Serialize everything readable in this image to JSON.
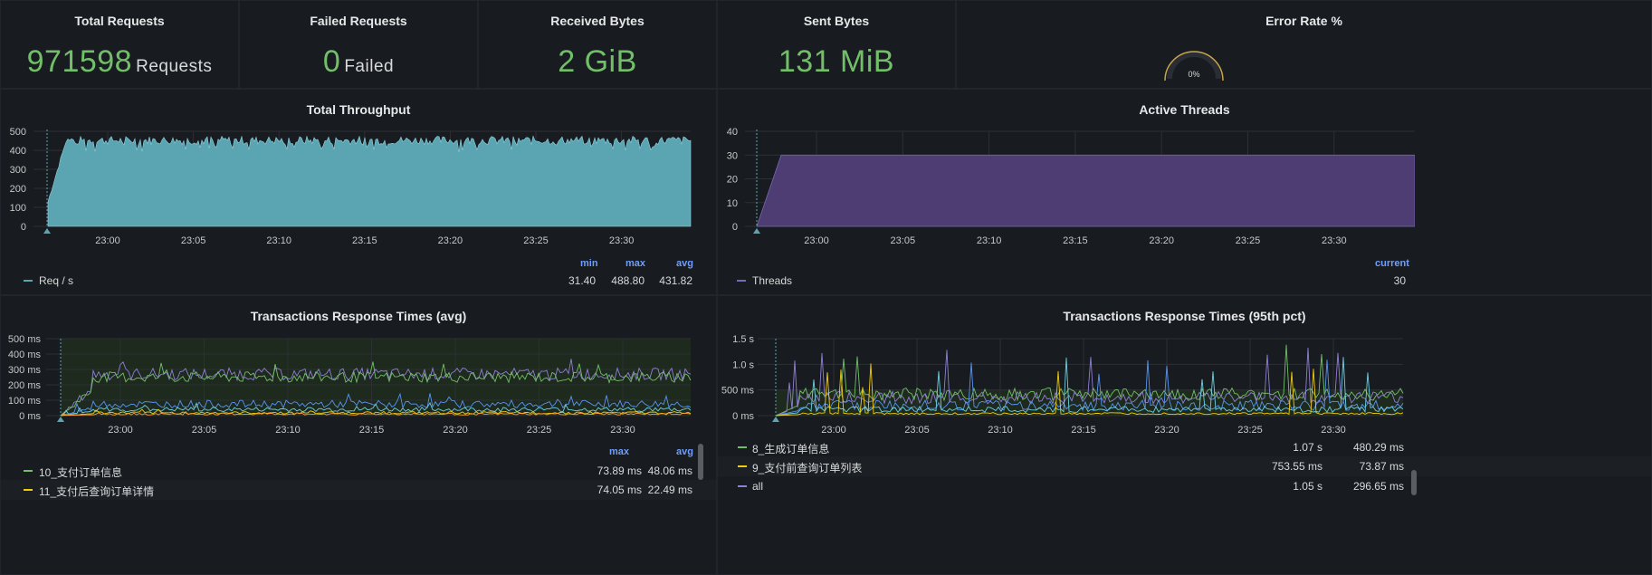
{
  "stats": [
    {
      "title": "Total Requests",
      "value": "971598",
      "unit": "Requests"
    },
    {
      "title": "Failed Requests",
      "value": "0",
      "unit": "Failed"
    },
    {
      "title": "Received Bytes",
      "value": "2 GiB",
      "unit": ""
    },
    {
      "title": "Sent Bytes",
      "value": "131 MiB",
      "unit": ""
    },
    {
      "title": "Error Rate %",
      "value": "0%",
      "unit": ""
    }
  ],
  "colors": {
    "throughput": "#5ba4b2",
    "threads": "#4d3d73",
    "stat_green": "#73bf69",
    "legend_head": "#6e9fff"
  },
  "x_ticks": [
    "23:00",
    "23:05",
    "23:10",
    "23:15",
    "23:20",
    "23:25",
    "23:30"
  ],
  "throughput": {
    "title": "Total Throughput",
    "y_ticks": [
      "500",
      "400",
      "300",
      "200",
      "100",
      "0"
    ],
    "legend_headers": [
      "min",
      "max",
      "avg"
    ],
    "series": [
      {
        "name": "Req / s",
        "min": "31.40",
        "max": "488.80",
        "avg": "431.82"
      }
    ]
  },
  "threads": {
    "title": "Active Threads",
    "y_ticks": [
      "40",
      "30",
      "20",
      "10",
      "0"
    ],
    "legend_headers": [
      "current"
    ],
    "series": [
      {
        "name": "Threads",
        "current": "30"
      }
    ]
  },
  "resp_avg": {
    "title": "Transactions Response Times (avg)",
    "y_ticks": [
      "500 ms",
      "400 ms",
      "300 ms",
      "200 ms",
      "100 ms",
      "0 ms"
    ],
    "legend_headers": [
      "max",
      "avg"
    ],
    "series": [
      {
        "name": "10_支付订单信息",
        "max": "73.89 ms",
        "avg": "48.06 ms",
        "color": "#73bf69"
      },
      {
        "name": "11_支付后查询订单详情",
        "max": "74.05 ms",
        "avg": "22.49 ms",
        "color": "#f2cc0c"
      }
    ]
  },
  "resp_p95": {
    "title": "Transactions Response Times (95th pct)",
    "y_ticks": [
      "1.5 s",
      "1.0 s",
      "500 ms",
      "0 ms"
    ],
    "series": [
      {
        "name": "8_生成订单信息",
        "max": "1.07 s",
        "avg": "480.29 ms",
        "color": "#73bf69"
      },
      {
        "name": "9_支付前查询订单列表",
        "max": "753.55 ms",
        "avg": "73.87 ms",
        "color": "#f2cc0c"
      },
      {
        "name": "all",
        "max": "1.05 s",
        "avg": "296.65 ms",
        "color": "#8f7fd6"
      }
    ]
  },
  "chart_data": [
    {
      "type": "area",
      "title": "Total Throughput",
      "x": [
        "23:00",
        "23:05",
        "23:10",
        "23:15",
        "23:20",
        "23:25",
        "23:30"
      ],
      "series": [
        {
          "name": "Req / s",
          "min": 31.4,
          "max": 488.8,
          "avg": 431.82
        }
      ],
      "ylim": [
        0,
        500
      ]
    },
    {
      "type": "area",
      "title": "Active Threads",
      "x": [
        "23:00",
        "23:05",
        "23:10",
        "23:15",
        "23:20",
        "23:25",
        "23:30"
      ],
      "series": [
        {
          "name": "Threads",
          "current": 30
        }
      ],
      "ylim": [
        0,
        40
      ]
    },
    {
      "type": "line",
      "title": "Transactions Response Times (avg)",
      "x": [
        "23:00",
        "23:05",
        "23:10",
        "23:15",
        "23:20",
        "23:25",
        "23:30"
      ],
      "ylim": [
        0,
        500
      ]
    },
    {
      "type": "line",
      "title": "Transactions Response Times (95th pct)",
      "x": [
        "23:00",
        "23:05",
        "23:10",
        "23:15",
        "23:20",
        "23:25",
        "23:30"
      ],
      "ylim": [
        0,
        1500
      ]
    }
  ]
}
